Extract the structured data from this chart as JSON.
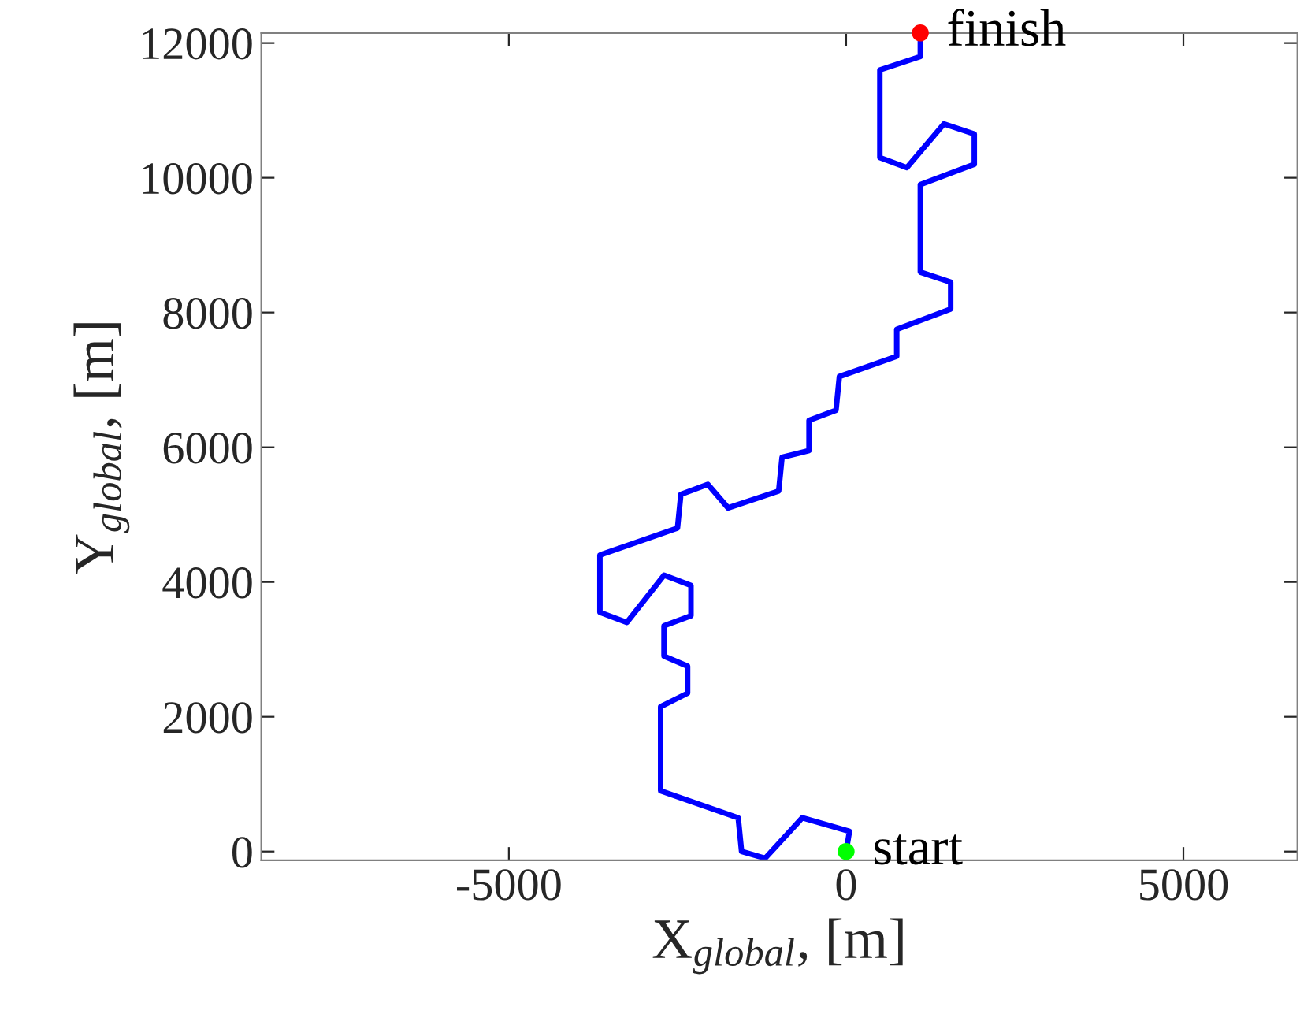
{
  "chart_data": {
    "type": "line",
    "xlabel": "X$_{global}$, [m]",
    "ylabel": "Y$_{global}$, [m]",
    "xlim": [
      -8670,
      6690
    ],
    "ylim": [
      -130,
      12150
    ],
    "xticks": [
      {
        "value": -5000,
        "label": "-5000"
      },
      0,
      5000
    ],
    "yticks": [
      0,
      2000,
      4000,
      6000,
      8000,
      10000,
      12000
    ],
    "grid": false,
    "legend": false,
    "line_style": "solid",
    "series": [
      {
        "color": "#0000ff",
        "marker": "none",
        "x": [
          0,
          50,
          -650,
          -1200,
          -1550,
          -1600,
          -2750,
          -2750,
          -2350,
          -2350,
          -2700,
          -2700,
          -2300,
          -2300,
          -2700,
          -3250,
          -3650,
          -3650,
          -2500,
          -2450,
          -2050,
          -1750,
          -1000,
          -950,
          -550,
          -550,
          -150,
          -100,
          750,
          750,
          1550,
          1550,
          1100,
          1100,
          1900,
          1900,
          1450,
          900,
          500,
          500,
          1100,
          1100
        ],
        "values": [
          0,
          300,
          500,
          -100,
          0,
          500,
          900,
          2150,
          2350,
          2750,
          2900,
          3350,
          3500,
          3950,
          4100,
          3400,
          3550,
          4400,
          4800,
          5300,
          5450,
          5100,
          5350,
          5850,
          5950,
          6400,
          6550,
          7050,
          7350,
          7750,
          8050,
          8450,
          8600,
          9900,
          10200,
          10650,
          10800,
          10150,
          10300,
          11600,
          11800,
          12150
        ]
      },
      {
        "type": "scatter",
        "marker": "circle",
        "color": "#00ff00",
        "x": [
          0
        ],
        "values": [
          0
        ]
      },
      {
        "type": "scatter",
        "marker": "circle",
        "color": "#ff0000",
        "x": [
          1100
        ],
        "values": [
          12150
        ]
      }
    ],
    "annotations": [
      {
        "text": "start",
        "x": 0,
        "y": 0
      },
      {
        "text": "finish",
        "x": 1100,
        "y": 12150
      }
    ]
  }
}
